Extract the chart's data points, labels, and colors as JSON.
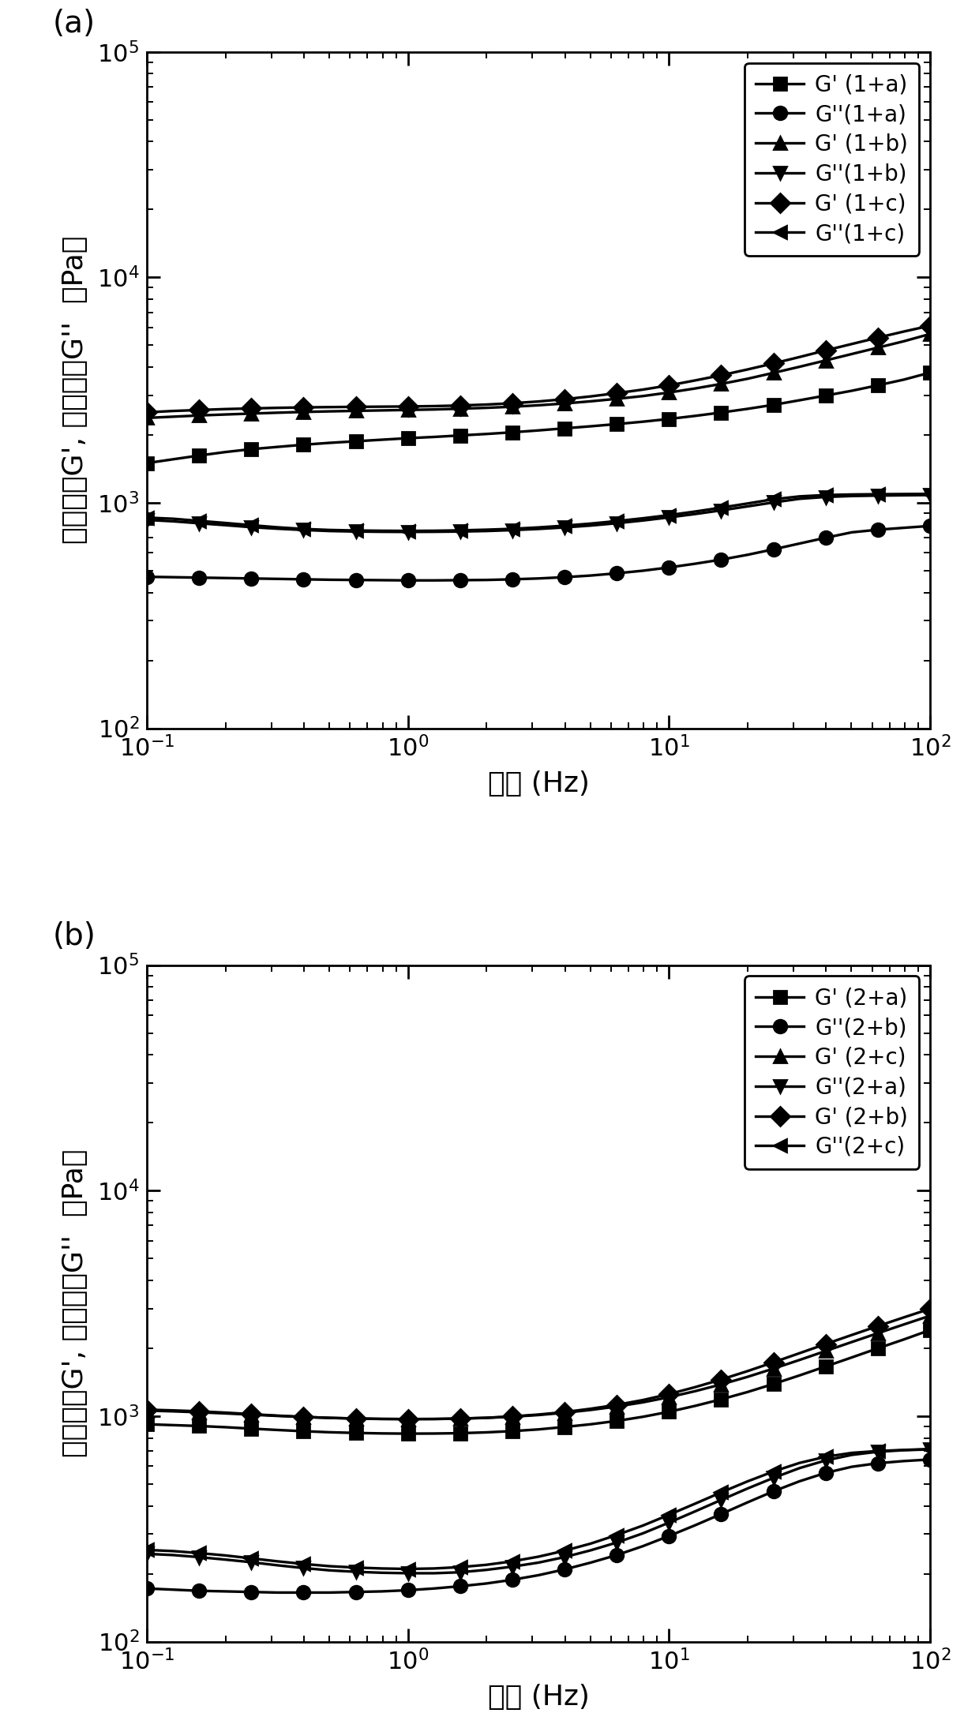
{
  "panel_a": {
    "label": "(a)",
    "xlabel": "频率 (Hz)",
    "ylabel": "储能模量G', 损耗模量G''  （Pa）",
    "xlim": [
      0.1,
      100
    ],
    "ylim": [
      100,
      100000
    ],
    "series": [
      {
        "label": "G' (1+a)",
        "marker": "s",
        "color": "#000000",
        "x": [
          0.1,
          0.126,
          0.158,
          0.2,
          0.251,
          0.316,
          0.398,
          0.501,
          0.631,
          0.794,
          1.0,
          1.259,
          1.585,
          1.995,
          2.512,
          3.162,
          3.981,
          5.012,
          6.31,
          7.943,
          10.0,
          12.59,
          15.85,
          19.95,
          25.12,
          31.62,
          39.81,
          50.12,
          63.1,
          79.43,
          100.0
        ],
        "y": [
          1500,
          1560,
          1620,
          1680,
          1730,
          1770,
          1810,
          1845,
          1875,
          1905,
          1935,
          1960,
          1990,
          2020,
          2055,
          2095,
          2140,
          2185,
          2235,
          2290,
          2355,
          2430,
          2515,
          2610,
          2720,
          2850,
          2990,
          3140,
          3320,
          3520,
          3780
        ]
      },
      {
        "label": "G''(1+a)",
        "marker": "o",
        "color": "#000000",
        "x": [
          0.1,
          0.126,
          0.158,
          0.2,
          0.251,
          0.316,
          0.398,
          0.501,
          0.631,
          0.794,
          1.0,
          1.259,
          1.585,
          1.995,
          2.512,
          3.162,
          3.981,
          5.012,
          6.31,
          7.943,
          10.0,
          12.59,
          15.85,
          19.95,
          25.12,
          31.62,
          39.81,
          50.12,
          63.1,
          79.43,
          100.0
        ],
        "y": [
          470,
          468,
          466,
          464,
          462,
          460,
          458,
          456,
          455,
          454,
          453,
          453,
          454,
          455,
          458,
          462,
          468,
          476,
          487,
          500,
          517,
          537,
          560,
          588,
          622,
          660,
          700,
          740,
          760,
          775,
          790
        ]
      },
      {
        "label": "G' (1+b)",
        "marker": "^",
        "color": "#000000",
        "x": [
          0.1,
          0.126,
          0.158,
          0.2,
          0.251,
          0.316,
          0.398,
          0.501,
          0.631,
          0.794,
          1.0,
          1.259,
          1.585,
          1.995,
          2.512,
          3.162,
          3.981,
          5.012,
          6.31,
          7.943,
          10.0,
          12.59,
          15.85,
          19.95,
          25.12,
          31.62,
          39.81,
          50.12,
          63.1,
          79.43,
          100.0
        ],
        "y": [
          2380,
          2410,
          2440,
          2465,
          2488,
          2510,
          2530,
          2545,
          2558,
          2570,
          2582,
          2595,
          2615,
          2638,
          2668,
          2708,
          2758,
          2820,
          2892,
          2975,
          3085,
          3215,
          3368,
          3548,
          3770,
          4012,
          4280,
          4570,
          4878,
          5208,
          5608
        ]
      },
      {
        "label": "G''(1+b)",
        "marker": "v",
        "color": "#000000",
        "x": [
          0.1,
          0.126,
          0.158,
          0.2,
          0.251,
          0.316,
          0.398,
          0.501,
          0.631,
          0.794,
          1.0,
          1.259,
          1.585,
          1.995,
          2.512,
          3.162,
          3.981,
          5.012,
          6.31,
          7.943,
          10.0,
          12.59,
          15.85,
          19.95,
          25.12,
          31.62,
          39.81,
          50.12,
          63.1,
          79.43,
          100.0
        ],
        "y": [
          840,
          828,
          812,
          796,
          780,
          768,
          758,
          750,
          746,
          744,
          743,
          744,
          746,
          750,
          757,
          766,
          778,
          793,
          812,
          835,
          862,
          892,
          926,
          964,
          1004,
          1042,
          1062,
          1072,
          1077,
          1080,
          1083
        ]
      },
      {
        "label": "G' (1+c)",
        "marker": "D",
        "color": "#000000",
        "x": [
          0.1,
          0.126,
          0.158,
          0.2,
          0.251,
          0.316,
          0.398,
          0.501,
          0.631,
          0.794,
          1.0,
          1.259,
          1.585,
          1.995,
          2.512,
          3.162,
          3.981,
          5.012,
          6.31,
          7.943,
          10.0,
          12.59,
          15.85,
          19.95,
          25.12,
          31.62,
          39.81,
          50.12,
          63.1,
          79.43,
          100.0
        ],
        "y": [
          2520,
          2555,
          2580,
          2605,
          2622,
          2638,
          2650,
          2658,
          2665,
          2670,
          2676,
          2685,
          2702,
          2728,
          2765,
          2815,
          2882,
          2965,
          3065,
          3178,
          3318,
          3490,
          3680,
          3902,
          4152,
          4432,
          4742,
          5062,
          5402,
          5752,
          6102
        ]
      },
      {
        "label": "G''(1+c)",
        "marker": "<",
        "color": "#000000",
        "x": [
          0.1,
          0.126,
          0.158,
          0.2,
          0.251,
          0.316,
          0.398,
          0.501,
          0.631,
          0.794,
          1.0,
          1.259,
          1.585,
          1.995,
          2.512,
          3.162,
          3.981,
          5.012,
          6.31,
          7.943,
          10.0,
          12.59,
          15.85,
          19.95,
          25.12,
          31.62,
          39.81,
          50.12,
          63.1,
          79.43,
          100.0
        ],
        "y": [
          860,
          850,
          832,
          814,
          796,
          779,
          766,
          758,
          754,
          752,
          751,
          752,
          755,
          760,
          767,
          778,
          792,
          809,
          830,
          854,
          882,
          915,
          952,
          993,
          1037,
          1068,
          1083,
          1089,
          1092,
          1094,
          1096
        ]
      }
    ]
  },
  "panel_b": {
    "label": "(b)",
    "xlabel": "频率 (Hz)",
    "ylabel": "储能模量G', 损耗模量G''  （Pa）",
    "xlim": [
      0.1,
      100
    ],
    "ylim": [
      100,
      100000
    ],
    "series": [
      {
        "label": "G' (2+a)",
        "marker": "s",
        "color": "#000000",
        "x": [
          0.1,
          0.126,
          0.158,
          0.2,
          0.251,
          0.316,
          0.398,
          0.501,
          0.631,
          0.794,
          1.0,
          1.259,
          1.585,
          1.995,
          2.512,
          3.162,
          3.981,
          5.012,
          6.31,
          7.943,
          10.0,
          12.59,
          15.85,
          19.95,
          25.12,
          31.62,
          39.81,
          50.12,
          63.1,
          79.43,
          100.0
        ],
        "y": [
          920,
          912,
          904,
          893,
          880,
          868,
          857,
          848,
          842,
          838,
          836,
          837,
          840,
          847,
          858,
          873,
          895,
          920,
          952,
          993,
          1045,
          1110,
          1187,
          1278,
          1388,
          1515,
          1660,
          1820,
          1998,
          2188,
          2408
        ]
      },
      {
        "label": "G''(2+b)",
        "marker": "o",
        "color": "#000000",
        "x": [
          0.1,
          0.126,
          0.158,
          0.2,
          0.251,
          0.316,
          0.398,
          0.501,
          0.631,
          0.794,
          1.0,
          1.259,
          1.585,
          1.995,
          2.512,
          3.162,
          3.981,
          5.012,
          6.31,
          7.943,
          10.0,
          12.59,
          15.85,
          19.95,
          25.12,
          31.62,
          39.81,
          50.12,
          63.1,
          79.43,
          100.0
        ],
        "y": [
          172,
          170,
          168,
          167,
          166,
          165,
          165,
          165,
          166,
          167,
          169,
          172,
          176,
          181,
          188,
          197,
          209,
          224,
          242,
          265,
          294,
          328,
          368,
          414,
          464,
          514,
          560,
          596,
          618,
          632,
          642
        ]
      },
      {
        "label": "G' (2+c)",
        "marker": "^",
        "color": "#000000",
        "x": [
          0.1,
          0.126,
          0.158,
          0.2,
          0.251,
          0.316,
          0.398,
          0.501,
          0.631,
          0.794,
          1.0,
          1.259,
          1.585,
          1.995,
          2.512,
          3.162,
          3.981,
          5.012,
          6.31,
          7.943,
          10.0,
          12.59,
          15.85,
          19.95,
          25.12,
          31.62,
          39.81,
          50.12,
          63.1,
          79.43,
          100.0
        ],
        "y": [
          1058,
          1050,
          1040,
          1028,
          1015,
          1002,
          991,
          982,
          976,
          972,
          970,
          971,
          975,
          982,
          994,
          1011,
          1035,
          1065,
          1103,
          1151,
          1213,
          1290,
          1382,
          1492,
          1624,
          1774,
          1944,
          2130,
          2332,
          2550,
          2786
        ]
      },
      {
        "label": "G''(2+a)",
        "marker": "v",
        "color": "#000000",
        "x": [
          0.1,
          0.126,
          0.158,
          0.2,
          0.251,
          0.316,
          0.398,
          0.501,
          0.631,
          0.794,
          1.0,
          1.259,
          1.585,
          1.995,
          2.512,
          3.162,
          3.981,
          5.012,
          6.31,
          7.943,
          10.0,
          12.59,
          15.85,
          19.95,
          25.12,
          31.62,
          39.81,
          50.12,
          63.1,
          79.43,
          100.0
        ],
        "y": [
          245,
          242,
          237,
          231,
          225,
          218,
          212,
          207,
          204,
          202,
          201,
          201,
          203,
          208,
          215,
          224,
          237,
          254,
          275,
          302,
          337,
          378,
          425,
          477,
          532,
          588,
          636,
          673,
          695,
          706,
          712
        ]
      },
      {
        "label": "G' (2+b)",
        "marker": "D",
        "color": "#000000",
        "x": [
          0.1,
          0.126,
          0.158,
          0.2,
          0.251,
          0.316,
          0.398,
          0.501,
          0.631,
          0.794,
          1.0,
          1.259,
          1.585,
          1.995,
          2.512,
          3.162,
          3.981,
          5.012,
          6.31,
          7.943,
          10.0,
          12.59,
          15.85,
          19.95,
          25.12,
          31.62,
          39.81,
          50.12,
          63.1,
          79.43,
          100.0
        ],
        "y": [
          1068,
          1060,
          1050,
          1036,
          1020,
          1005,
          992,
          982,
          975,
          971,
          970,
          971,
          975,
          983,
          997,
          1016,
          1042,
          1078,
          1122,
          1178,
          1252,
          1344,
          1453,
          1582,
          1732,
          1901,
          2087,
          2289,
          2507,
          2741,
          2991
        ]
      },
      {
        "label": "G''(2+c)",
        "marker": "<",
        "color": "#000000",
        "x": [
          0.1,
          0.126,
          0.158,
          0.2,
          0.251,
          0.316,
          0.398,
          0.501,
          0.631,
          0.794,
          1.0,
          1.259,
          1.585,
          1.995,
          2.512,
          3.162,
          3.981,
          5.012,
          6.31,
          7.943,
          10.0,
          12.59,
          15.85,
          19.95,
          25.12,
          31.62,
          39.81,
          50.12,
          63.1,
          79.43,
          100.0
        ],
        "y": [
          255,
          252,
          247,
          241,
          234,
          227,
          221,
          216,
          213,
          211,
          210,
          211,
          214,
          219,
          227,
          238,
          253,
          272,
          297,
          327,
          365,
          409,
          459,
          513,
          568,
          620,
          660,
          687,
          700,
          708,
          714
        ]
      }
    ]
  },
  "fig_width": 6.2,
  "fig_height": 10.945,
  "dpi": 200,
  "background_color": "#ffffff",
  "text_color": "#000000",
  "font_size_label": 13,
  "font_size_tick": 11,
  "font_size_legend": 10,
  "font_size_panel": 14,
  "marker_size": 6,
  "line_width": 1.2
}
